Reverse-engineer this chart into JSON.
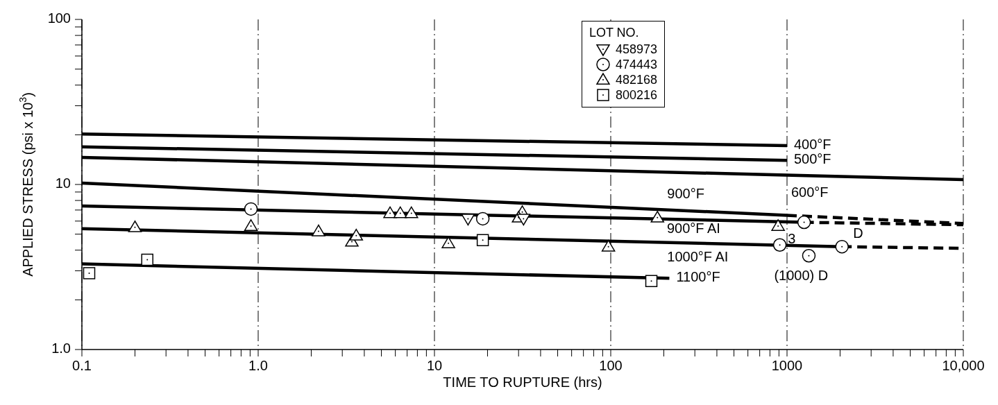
{
  "chart_data": {
    "type": "scatter",
    "xlabel": "TIME TO RUPTURE (hrs)",
    "ylabel": "APPLIED STRESS (psi x 10$^{3}$)",
    "legend_title": "LOT NO.",
    "log": "xy",
    "grid": "x",
    "legend": "top right",
    "xlim": [
      0.1,
      10000
    ],
    "ylim": [
      1,
      100
    ],
    "xticks": [
      0.1,
      {
        "value": 0.2,
        "label": null
      },
      {
        "value": 0.3,
        "label": null
      },
      {
        "value": 0.4,
        "label": null
      },
      {
        "value": 0.5,
        "label": null
      },
      {
        "value": 0.6,
        "label": null
      },
      {
        "value": 0.7,
        "label": null
      },
      {
        "value": 0.8,
        "label": null
      },
      {
        "value": 0.9,
        "label": null
      },
      {
        "value": 1,
        "label": "1.0"
      },
      {
        "value": 2,
        "label": null
      },
      {
        "value": 3,
        "label": null
      },
      {
        "value": 4,
        "label": null
      },
      {
        "value": 5,
        "label": null
      },
      {
        "value": 6,
        "label": null
      },
      {
        "value": 7,
        "label": null
      },
      {
        "value": 8,
        "label": null
      },
      {
        "value": 9,
        "label": null
      },
      10,
      {
        "value": 20,
        "label": null
      },
      {
        "value": 30,
        "label": null
      },
      {
        "value": 40,
        "label": null
      },
      {
        "value": 50,
        "label": null
      },
      {
        "value": 60,
        "label": null
      },
      {
        "value": 70,
        "label": null
      },
      {
        "value": 80,
        "label": null
      },
      {
        "value": 90,
        "label": null
      },
      100,
      {
        "value": 200,
        "label": null
      },
      {
        "value": 300,
        "label": null
      },
      {
        "value": 400,
        "label": null
      },
      {
        "value": 500,
        "label": null
      },
      {
        "value": 600,
        "label": null
      },
      {
        "value": 700,
        "label": null
      },
      {
        "value": 800,
        "label": null
      },
      {
        "value": 900,
        "label": null
      },
      1000,
      {
        "value": 2000,
        "label": null
      },
      {
        "value": 3000,
        "label": null
      },
      {
        "value": 4000,
        "label": null
      },
      {
        "value": 5000,
        "label": null
      },
      {
        "value": 6000,
        "label": null
      },
      {
        "value": 7000,
        "label": null
      },
      {
        "value": 8000,
        "label": null
      },
      {
        "value": 9000,
        "label": null
      },
      {
        "value": 10000,
        "label": "10,000"
      }
    ],
    "yticks": [
      {
        "value": 1,
        "label": "1.0"
      },
      {
        "value": 2,
        "label": null
      },
      {
        "value": 3,
        "label": null
      },
      {
        "value": 4,
        "label": null
      },
      {
        "value": 5,
        "label": null
      },
      {
        "value": 6,
        "label": null
      },
      {
        "value": 7,
        "label": null
      },
      {
        "value": 8,
        "label": null
      },
      {
        "value": 9,
        "label": null
      },
      10,
      {
        "value": 20,
        "label": null
      },
      {
        "value": 30,
        "label": null
      },
      {
        "value": 40,
        "label": null
      },
      {
        "value": 50,
        "label": null
      },
      {
        "value": 60,
        "label": null
      },
      {
        "value": 70,
        "label": null
      },
      {
        "value": 80,
        "label": null
      },
      {
        "value": 90,
        "label": null
      },
      100
    ],
    "annotations": [
      {
        "text": "3",
        "x": 890,
        "y": 5.6
      },
      {
        "text": "D",
        "x": 2050,
        "y": 4.2
      },
      {
        "text": "(1000) D",
        "x": 1330,
        "y": 3.7
      }
    ],
    "series": [
      {
        "type": "line",
        "name": "400°F",
        "color": "#000000",
        "line_style": "solid",
        "x": [
          0.1,
          1000
        ],
        "values": [
          20.2,
          17.2
        ]
      },
      {
        "type": "line",
        "name": "500°F",
        "color": "#000000",
        "line_style": "solid",
        "x": [
          0.1,
          1000
        ],
        "values": [
          16.9,
          14
        ]
      },
      {
        "type": "line",
        "name": "600°F",
        "color": "#000000",
        "line_style": "solid",
        "x": [
          0.1,
          10000
        ],
        "values": [
          14.6,
          10.7
        ]
      },
      {
        "type": "line",
        "name": "900°F",
        "color": "#000000",
        "line_style": "solid",
        "x": [
          0.1,
          1000
        ],
        "values": [
          10.2,
          6.5
        ]
      },
      {
        "type": "line",
        "color": "#000000",
        "line_style": "dashed",
        "x": [
          1000,
          10000
        ],
        "values": [
          6.5,
          5.8
        ]
      },
      {
        "type": "line",
        "name": "900°F AI",
        "color": "#000000",
        "line_style": "solid",
        "x": [
          0.1,
          1250
        ],
        "values": [
          7.4,
          5.9
        ]
      },
      {
        "type": "line",
        "color": "#000000",
        "line_style": "dashed",
        "x": [
          1250,
          10000
        ],
        "values": [
          5.9,
          5.7
        ]
      },
      {
        "type": "line",
        "name": "1000°F AI",
        "color": "#000000",
        "line_style": "solid",
        "x": [
          0.1,
          2050
        ],
        "values": [
          5.4,
          4.2
        ]
      },
      {
        "type": "line",
        "color": "#000000",
        "line_style": "dashed",
        "x": [
          2050,
          10000
        ],
        "values": [
          4.2,
          4.1
        ]
      },
      {
        "type": "line",
        "name": "1100°F",
        "color": "#000000",
        "line_style": "solid",
        "x": [
          0.1,
          215
        ],
        "values": [
          3.3,
          2.7
        ]
      },
      {
        "name": "458973",
        "marker": "triangle-down",
        "color": "#000000",
        "x": [
          15.5,
          32
        ],
        "values": [
          6.2,
          6.2
        ]
      },
      {
        "name": "474443",
        "marker": "circle",
        "color": "#000000",
        "x": [
          0.91,
          18.8,
          1250,
          910,
          2050,
          1330
        ],
        "values": [
          7.1,
          6.2,
          5.9,
          4.3,
          4.2,
          3.7
        ]
      },
      {
        "name": "482168",
        "marker": "triangle",
        "color": "#000000",
        "x": [
          0.2,
          0.91,
          2.2,
          3.4,
          3.6,
          5.6,
          6.4,
          7.4,
          12,
          31.5,
          30,
          184,
          97,
          890
        ],
        "values": [
          5.5,
          5.6,
          5.2,
          4.5,
          4.9,
          6.7,
          6.7,
          6.7,
          4.4,
          6.8,
          6.3,
          6.3,
          4.2,
          5.6
        ]
      },
      {
        "name": "800216",
        "marker": "square",
        "color": "#000000",
        "x": [
          0.11,
          0.235,
          18.8,
          170
        ],
        "values": [
          2.9,
          3.5,
          4.6,
          2.6
        ]
      }
    ]
  }
}
